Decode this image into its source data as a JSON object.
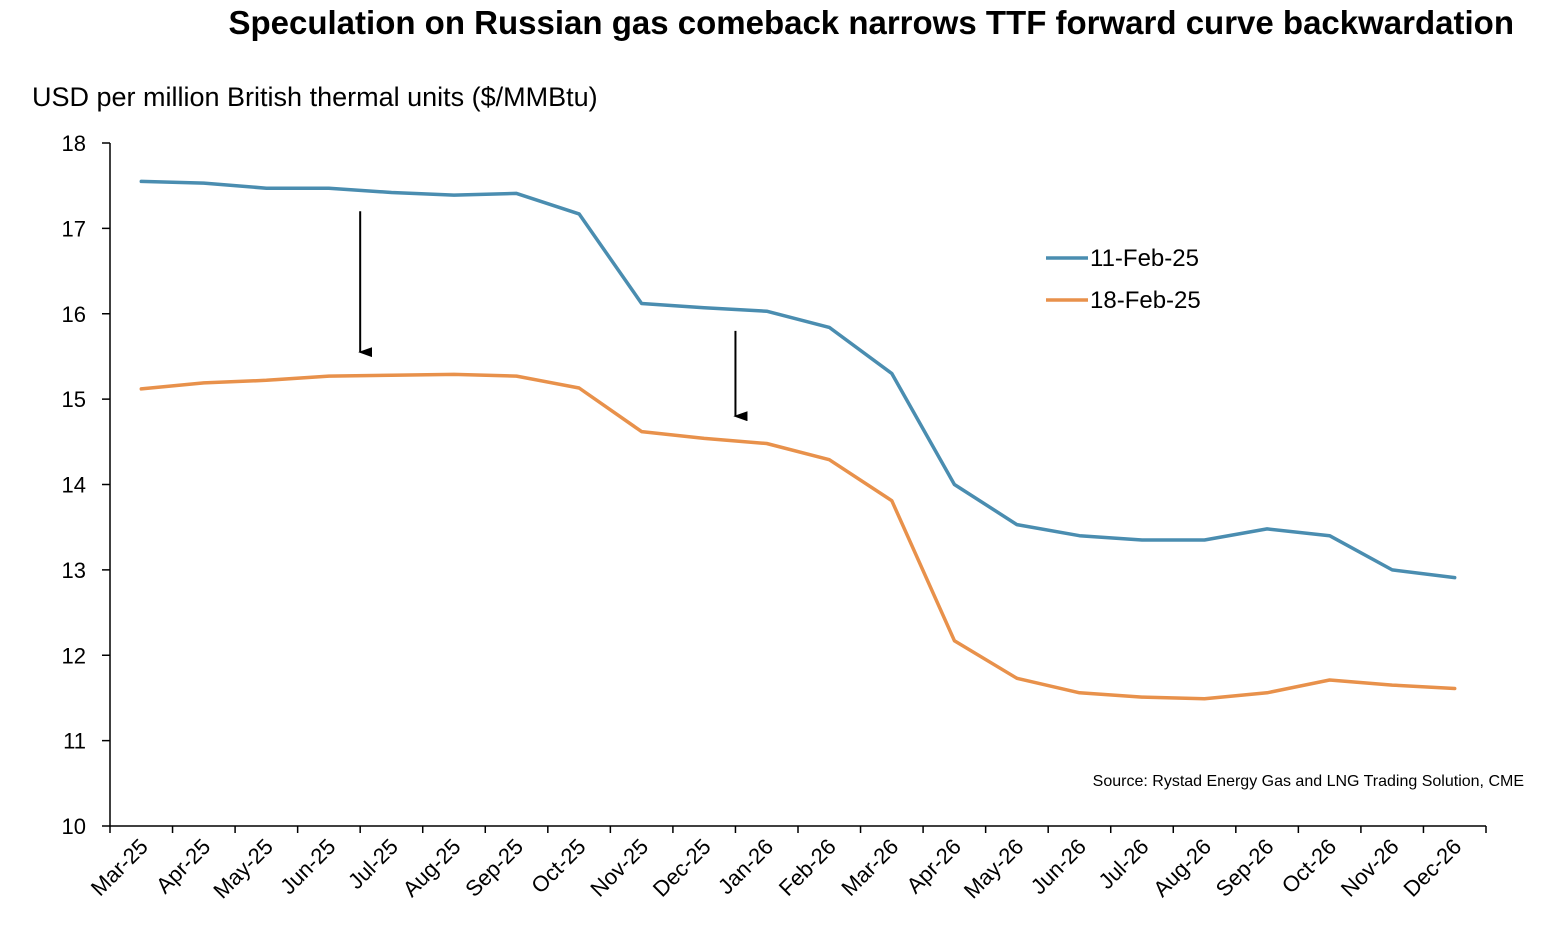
{
  "chart_data": {
    "type": "line",
    "title": "Speculation on Russian gas comeback narrows TTF forward curve backwardation",
    "ylabel": "USD per million British thermal units ($/MMBtu)",
    "xlabel": "",
    "ylim": [
      10,
      18
    ],
    "yticks": [
      10,
      11,
      12,
      13,
      14,
      15,
      16,
      17,
      18
    ],
    "grid": false,
    "legend_position": "top-right",
    "categories": [
      "Mar-25",
      "Apr-25",
      "May-25",
      "Jun-25",
      "Jul-25",
      "Aug-25",
      "Sep-25",
      "Oct-25",
      "Nov-25",
      "Dec-25",
      "Jan-26",
      "Feb-26",
      "Mar-26",
      "Apr-26",
      "May-26",
      "Jun-26",
      "Jul-26",
      "Aug-26",
      "Sep-26",
      "Oct-26",
      "Nov-26",
      "Dec-26"
    ],
    "series": [
      {
        "name": "11-Feb-25",
        "color": "#4a8db0",
        "values": [
          17.55,
          17.53,
          17.47,
          17.47,
          17.42,
          17.39,
          17.41,
          17.17,
          16.12,
          16.07,
          16.03,
          15.84,
          15.3,
          14.0,
          13.53,
          13.4,
          13.35,
          13.35,
          13.48,
          13.4,
          13.0,
          12.91
        ]
      },
      {
        "name": "18-Feb-25",
        "color": "#e8914b",
        "values": [
          15.12,
          15.19,
          15.22,
          15.27,
          15.28,
          15.29,
          15.27,
          15.13,
          14.62,
          14.54,
          14.48,
          14.29,
          13.81,
          12.17,
          11.73,
          11.56,
          11.51,
          11.49,
          11.56,
          11.71,
          11.65,
          11.61
        ]
      }
    ],
    "annotations": {
      "arrows": [
        {
          "x_between": [
            "Jun-25",
            "Jul-25"
          ],
          "from_y": 17.2,
          "to_y": 15.55
        },
        {
          "x_between": [
            "Dec-25",
            "Jan-26"
          ],
          "from_y": 15.8,
          "to_y": 14.8
        }
      ],
      "source": "Source: Rystad Energy Gas and LNG Trading Solution, CME"
    }
  }
}
